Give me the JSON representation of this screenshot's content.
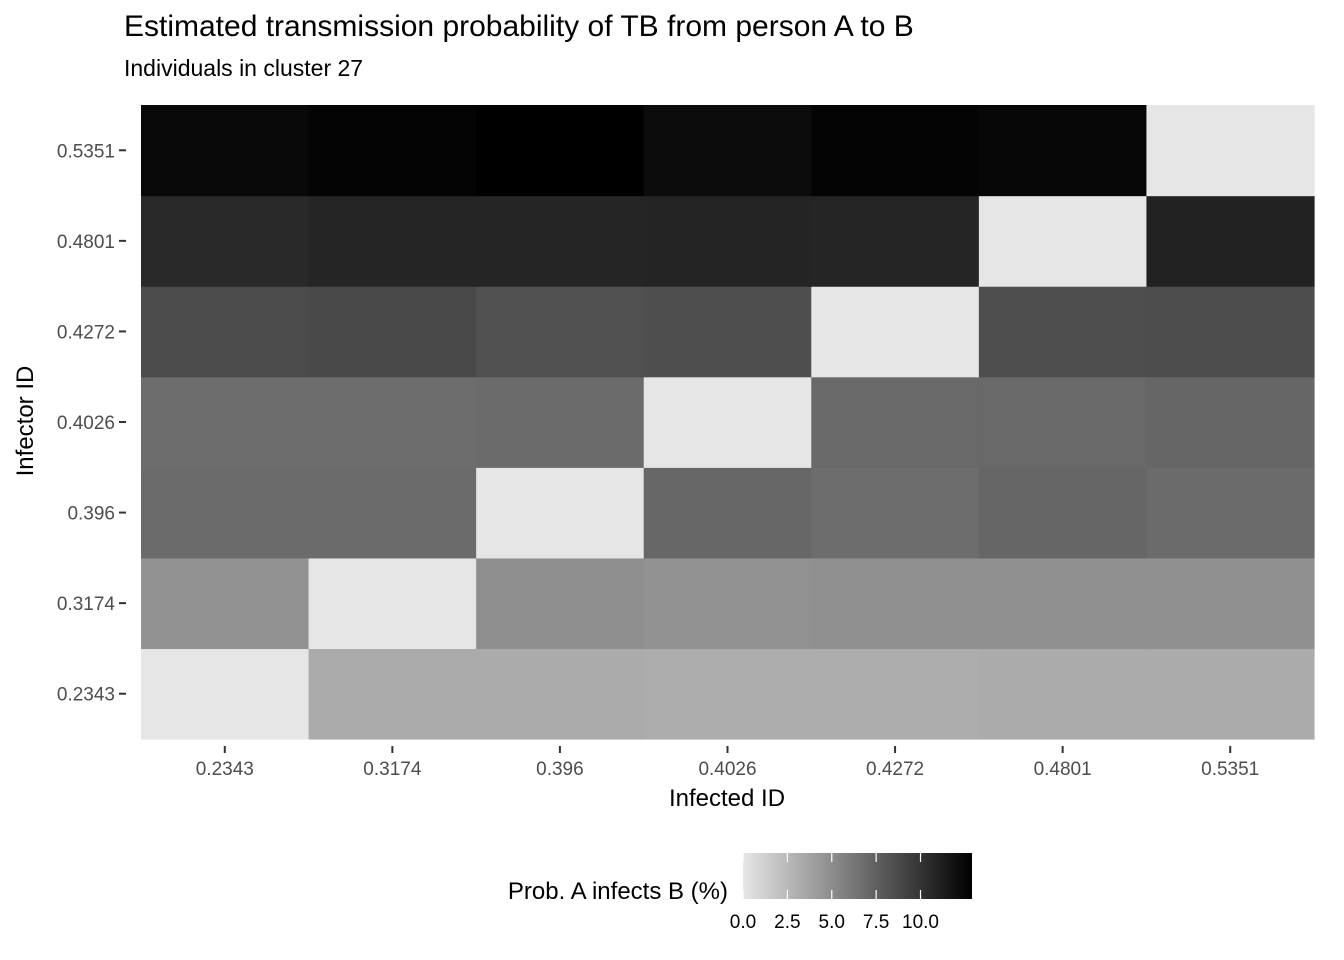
{
  "chart_data": {
    "type": "heatmap",
    "title": "Estimated transmission probability of TB from person A to B",
    "subtitle": "Individuals in cluster 27",
    "xlabel": "Infected ID",
    "ylabel": "Infector ID",
    "x_categories": [
      "0.2343",
      "0.3174",
      "0.396",
      "0.4026",
      "0.4272",
      "0.4801",
      "0.5351"
    ],
    "y_categories": [
      "0.2343",
      "0.3174",
      "0.396",
      "0.4026",
      "0.4272",
      "0.4801",
      "0.5351"
    ],
    "values": [
      [
        0.0,
        3.3,
        3.3,
        3.2,
        3.2,
        3.3,
        3.3
      ],
      [
        4.7,
        0.0,
        4.9,
        4.7,
        4.8,
        4.8,
        4.8
      ],
      [
        6.9,
        6.9,
        0.0,
        7.1,
        6.8,
        7.2,
        6.9
      ],
      [
        6.8,
        6.8,
        6.9,
        0.0,
        7.0,
        7.0,
        7.2
      ],
      [
        8.7,
        8.8,
        8.4,
        8.5,
        0.0,
        8.5,
        8.6
      ],
      [
        10.6,
        10.8,
        10.8,
        10.9,
        10.8,
        0.0,
        11.0
      ],
      [
        12.4,
        12.7,
        12.9,
        12.2,
        12.7,
        12.5,
        0.0
      ]
    ],
    "value_note": "values[i][j] = Prob. A infects B (%) for infector y_categories[i] and infected x_categories[j]",
    "color_scale": {
      "low": "#e6e6e6",
      "high": "#000000",
      "min": 0,
      "max": 12.9
    },
    "legend": {
      "title": "Prob. A infects B (%)",
      "ticks": [
        0,
        2.5,
        5,
        7.5,
        10
      ],
      "tick_labels": [
        "0.0",
        "2.5",
        "5.0",
        "7.5",
        "10.0"
      ],
      "position": "bottom"
    },
    "grid": false
  }
}
